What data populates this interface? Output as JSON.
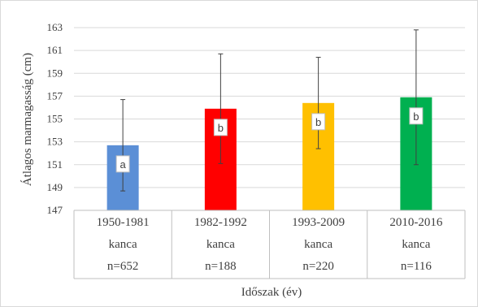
{
  "chart_data": {
    "type": "bar",
    "title": "",
    "xlabel": "Időszak (év)",
    "ylabel": "Átlagos marmagasság (cm)",
    "ylim": [
      147,
      163
    ],
    "yticks": [
      147,
      149,
      151,
      153,
      155,
      157,
      159,
      161,
      163
    ],
    "grid": true,
    "categories": [
      {
        "period": "1950-1981",
        "group": "kanca",
        "n": "n=652"
      },
      {
        "period": "1982-1992",
        "group": "kanca",
        "n": "n=188"
      },
      {
        "period": "1993-2009",
        "group": "kanca",
        "n": "n=220"
      },
      {
        "period": "2010-2016",
        "group": "kanca",
        "n": "n=116"
      }
    ],
    "values": [
      152.7,
      155.9,
      156.4,
      156.9
    ],
    "error": [
      4.0,
      4.8,
      4.0,
      5.9
    ],
    "letters": [
      "a",
      "b",
      "b",
      "b"
    ],
    "colors": [
      "#5b8fd6",
      "#ff0000",
      "#ffc000",
      "#00b050"
    ]
  }
}
